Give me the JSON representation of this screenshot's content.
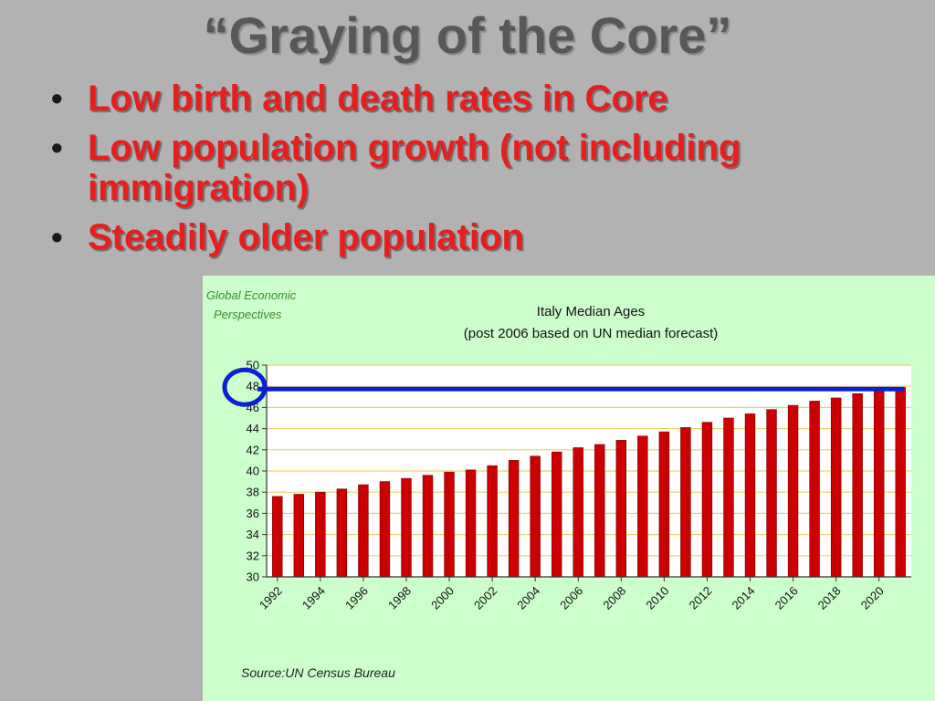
{
  "slide": {
    "title": "“Graying of the Core”",
    "bullets": [
      {
        "marker": "•",
        "text": "Low birth and death rates in Core"
      },
      {
        "marker": "•",
        "text": "Low population growth (not including immigration)"
      },
      {
        "marker": "•",
        "text": "Steadily older population"
      }
    ]
  },
  "chart_panel": {
    "logo_line1": "Global Economic",
    "logo_line2": "Perspectives",
    "source": "Source:UN Census Bureau"
  },
  "chart_data": {
    "type": "bar",
    "title": "Italy Median Ages",
    "subtitle": "(post 2006 based on UN median forecast)",
    "xlabel": "",
    "ylabel": "",
    "ylim": [
      30,
      50
    ],
    "yticks": [
      "30",
      "32",
      "34",
      "36",
      "38",
      "40",
      "42",
      "44",
      "46",
      "48",
      "50"
    ],
    "grid": true,
    "legend": "none",
    "x_tick_labels": [
      "1992",
      "1994",
      "1996",
      "1998",
      "2000",
      "2002",
      "2004",
      "2006",
      "2008",
      "2010",
      "2012",
      "2014",
      "2016",
      "2018",
      "2020"
    ],
    "categories": [
      "1992",
      "1993",
      "1994",
      "1995",
      "1996",
      "1997",
      "1998",
      "1999",
      "2000",
      "2001",
      "2002",
      "2003",
      "2004",
      "2005",
      "2006",
      "2007",
      "2008",
      "2009",
      "2010",
      "2011",
      "2012",
      "2013",
      "2014",
      "2015",
      "2016",
      "2017",
      "2018",
      "2019",
      "2020",
      "2021"
    ],
    "values": [
      37.6,
      37.8,
      38.0,
      38.3,
      38.7,
      39.0,
      39.3,
      39.6,
      39.9,
      40.1,
      40.5,
      41.0,
      41.4,
      41.8,
      42.2,
      42.5,
      42.9,
      43.3,
      43.7,
      44.1,
      44.6,
      45.0,
      45.4,
      45.8,
      46.2,
      46.6,
      46.9,
      47.3,
      47.6,
      47.9
    ],
    "highlight_value": 48,
    "colors": {
      "bar": "#cc0000",
      "bar_edge": "#7a0000",
      "grid": "#e6d36a",
      "highlight_line": "#0a1fd6",
      "plot_bg": "#ffffff",
      "panel_bg": "#ccffcc",
      "logo_text": "#3e8e2e"
    }
  }
}
